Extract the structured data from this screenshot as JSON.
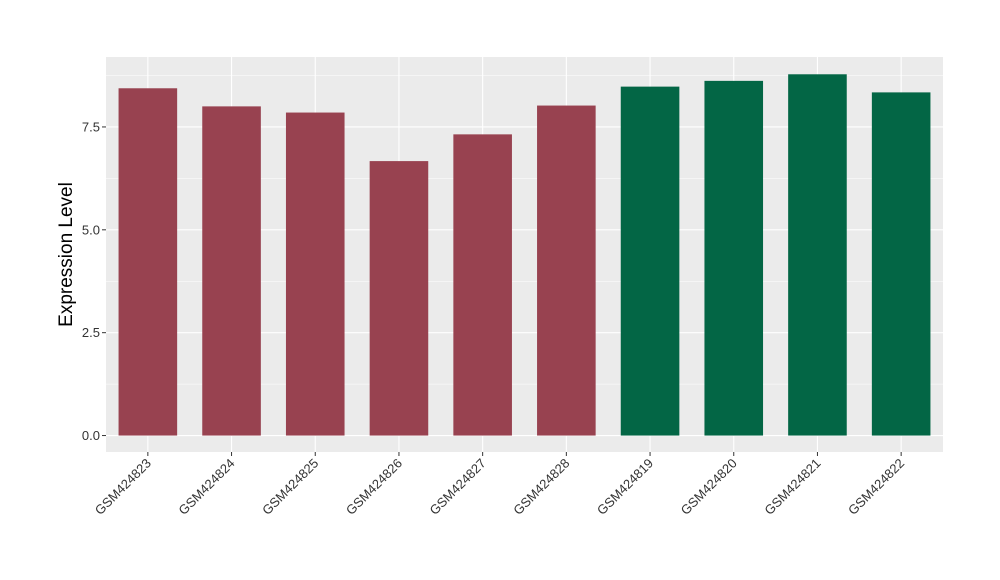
{
  "chart_data": {
    "type": "bar",
    "title": "",
    "xlabel": "",
    "ylabel": "Expression Level",
    "ylim": [
      -0.4,
      9.2
    ],
    "yticks": [
      0.0,
      2.5,
      5.0,
      7.5
    ],
    "ytick_labels": [
      "0.0",
      "2.5",
      "5.0",
      "7.5"
    ],
    "grid": true,
    "legend": "none",
    "categories": [
      "GSM424823",
      "GSM424824",
      "GSM424825",
      "GSM424826",
      "GSM424827",
      "GSM424828",
      "GSM424819",
      "GSM424820",
      "GSM424821",
      "GSM424822"
    ],
    "values": [
      8.44,
      8.0,
      7.85,
      6.67,
      7.32,
      8.02,
      8.48,
      8.62,
      8.78,
      8.34
    ],
    "groups": [
      "a",
      "a",
      "a",
      "a",
      "a",
      "a",
      "b",
      "b",
      "b",
      "b"
    ],
    "colors": {
      "a": "#984250",
      "b": "#036645"
    },
    "panel_background": "#EBEBEB",
    "grid_color": "#FFFFFF"
  }
}
